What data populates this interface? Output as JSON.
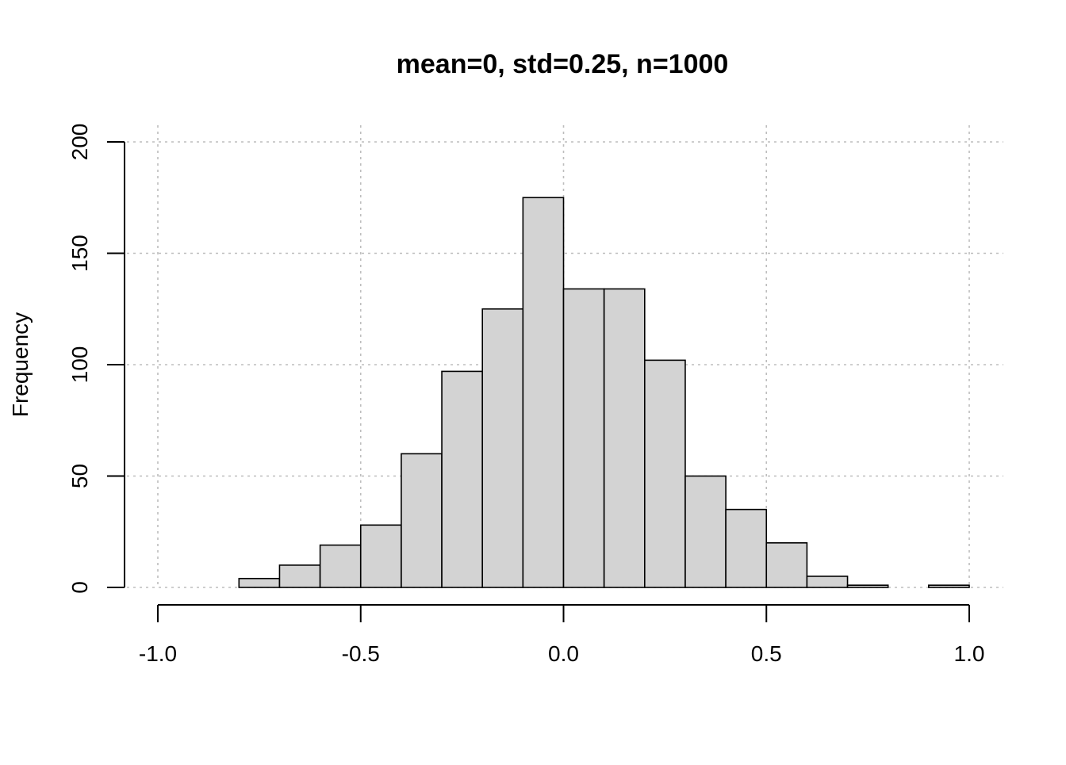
{
  "chart_data": {
    "type": "bar",
    "title": "mean=0, std=0.25, n=1000",
    "xlabel": "",
    "ylabel": "Frequency",
    "xlim": [
      -1.0,
      1.0
    ],
    "ylim": [
      0,
      200
    ],
    "x_ticks": [
      "-1.0",
      "-0.5",
      "0.0",
      "0.5",
      "1.0"
    ],
    "y_ticks": [
      "0",
      "50",
      "100",
      "150",
      "200"
    ],
    "grid": true,
    "bar_color": "#d3d3d3",
    "bins": [
      {
        "from": -0.8,
        "to": -0.7,
        "count": 4
      },
      {
        "from": -0.7,
        "to": -0.6,
        "count": 10
      },
      {
        "from": -0.6,
        "to": -0.5,
        "count": 19
      },
      {
        "from": -0.5,
        "to": -0.4,
        "count": 28
      },
      {
        "from": -0.4,
        "to": -0.3,
        "count": 60
      },
      {
        "from": -0.3,
        "to": -0.2,
        "count": 97
      },
      {
        "from": -0.2,
        "to": -0.1,
        "count": 125
      },
      {
        "from": -0.1,
        "to": 0.0,
        "count": 175
      },
      {
        "from": 0.0,
        "to": 0.1,
        "count": 134
      },
      {
        "from": 0.1,
        "to": 0.2,
        "count": 134
      },
      {
        "from": 0.2,
        "to": 0.3,
        "count": 102
      },
      {
        "from": 0.3,
        "to": 0.4,
        "count": 50
      },
      {
        "from": 0.4,
        "to": 0.5,
        "count": 35
      },
      {
        "from": 0.5,
        "to": 0.6,
        "count": 20
      },
      {
        "from": 0.6,
        "to": 0.7,
        "count": 5
      },
      {
        "from": 0.7,
        "to": 0.8,
        "count": 1
      },
      {
        "from": 0.8,
        "to": 0.9,
        "count": 0
      },
      {
        "from": 0.9,
        "to": 1.0,
        "count": 1
      }
    ]
  }
}
